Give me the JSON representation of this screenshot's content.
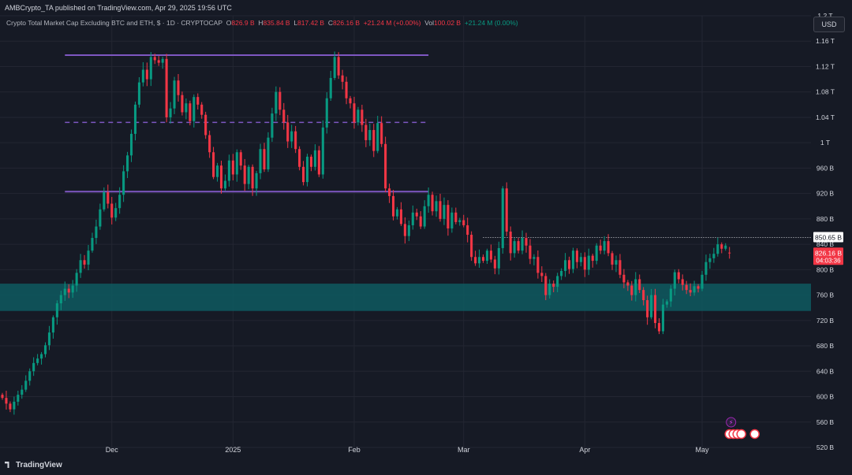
{
  "header": {
    "published": "AMBCrypto_TA published on TradingView.com, Apr 29, 2025 19:56 UTC"
  },
  "legend": {
    "symbol": "Crypto Total Market Cap Excluding BTC and ETH, $ · 1D · CRYPTOCAP",
    "open_label": "O",
    "open": "826.9 B",
    "high_label": "H",
    "high": "835.84 B",
    "low_label": "L",
    "low": "817.42 B",
    "close_label": "C",
    "close": "826.16 B",
    "change": "+21.24 M (+0.00%)",
    "vol_label": "Vol",
    "vol": "100.02 B",
    "vol_change": "+21.24 M (0.00%)"
  },
  "currency_button": "USD",
  "price_tags": {
    "level": "850.65 B",
    "last": "826.16 B",
    "countdown": "04:03:36"
  },
  "brand": "TradingView",
  "colors": {
    "up": "#089981",
    "down": "#f23645",
    "range_line": "#7e57c2",
    "support_zone": "#0e5a60",
    "background": "#161a25",
    "grid": "#232632"
  },
  "icons": [
    "lightning-event-icon",
    "us-flag-event-icon"
  ],
  "chart_data": {
    "type": "candlestick",
    "y_unit": "B",
    "ylim": [
      520,
      1200
    ],
    "y_ticks": [
      "1.2 T",
      "1.16 T",
      "1.12 T",
      "1.08 T",
      "1.04 T",
      "1 T",
      "960 B",
      "920 B",
      "880 B",
      "840 B",
      "800 B",
      "760 B",
      "720 B",
      "680 B",
      "640 B",
      "600 B",
      "560 B",
      "520 B"
    ],
    "y_tick_values": [
      1200,
      1160,
      1120,
      1080,
      1040,
      1000,
      960,
      920,
      880,
      840,
      800,
      760,
      720,
      680,
      640,
      600,
      560,
      520
    ],
    "x_ticks": [
      "Dec",
      "2025",
      "Feb",
      "Mar",
      "Apr",
      "May"
    ],
    "x_tick_dates": [
      "2024-12-01",
      "2025-01-01",
      "2025-02-01",
      "2025-03-01",
      "2025-04-01",
      "2025-05-01"
    ],
    "x_range": [
      "2024-11-03",
      "2025-05-01"
    ],
    "grid": true,
    "annotations": {
      "range_high": 1138,
      "range_mid": 1032,
      "range_low": 923,
      "range_dates": [
        "2024-11-19",
        "2025-02-20"
      ],
      "support_zone": [
        735,
        778
      ],
      "resistance_dotted": 850.65
    },
    "closes": [
      598,
      589,
      580,
      592,
      603,
      611,
      625,
      640,
      653,
      660,
      667,
      681,
      701,
      725,
      747,
      760,
      770,
      764,
      775,
      795,
      815,
      808,
      830,
      850,
      868,
      895,
      922,
      904,
      882,
      897,
      918,
      955,
      980,
      1014,
      1060,
      1095,
      1115,
      1100,
      1135,
      1130,
      1126,
      1132,
      1040,
      1054,
      1098,
      1075,
      1048,
      1062,
      1034,
      1072,
      1060,
      1044,
      1012,
      985,
      946,
      964,
      928,
      940,
      972,
      950,
      985,
      964,
      935,
      962,
      928,
      952,
      990,
      958,
      1008,
      1046,
      1080,
      1052,
      1032,
      1002,
      1018,
      990,
      962,
      938,
      978,
      962,
      988,
      950,
      1024,
      1070,
      1102,
      1135,
      1106,
      1096,
      1070,
      1062,
      1032,
      1052,
      1028,
      1004,
      1020,
      987,
      1031,
      998,
      928,
      916,
      884,
      895,
      872,
      853,
      870,
      890,
      884,
      868,
      900,
      918,
      892,
      908,
      880,
      902,
      865,
      890,
      875,
      878,
      870,
      855,
      820,
      810,
      820,
      814,
      830,
      816,
      802,
      834,
      928,
      860,
      826,
      845,
      830,
      850,
      838,
      817,
      820,
      795,
      790,
      760,
      778,
      773,
      790,
      798,
      815,
      801,
      830,
      812,
      820,
      800,
      822,
      814,
      838,
      830,
      845,
      826,
      808,
      815,
      792,
      780,
      775,
      760,
      785,
      768,
      752,
      725,
      760,
      716,
      703,
      745,
      750,
      770,
      796,
      785,
      776,
      768,
      764,
      774,
      770,
      792,
      812,
      818,
      825,
      840,
      833,
      838,
      826
    ],
    "last_candle": {
      "open": 826.9,
      "high": 835.84,
      "low": 817.42,
      "close": 826.16
    }
  }
}
